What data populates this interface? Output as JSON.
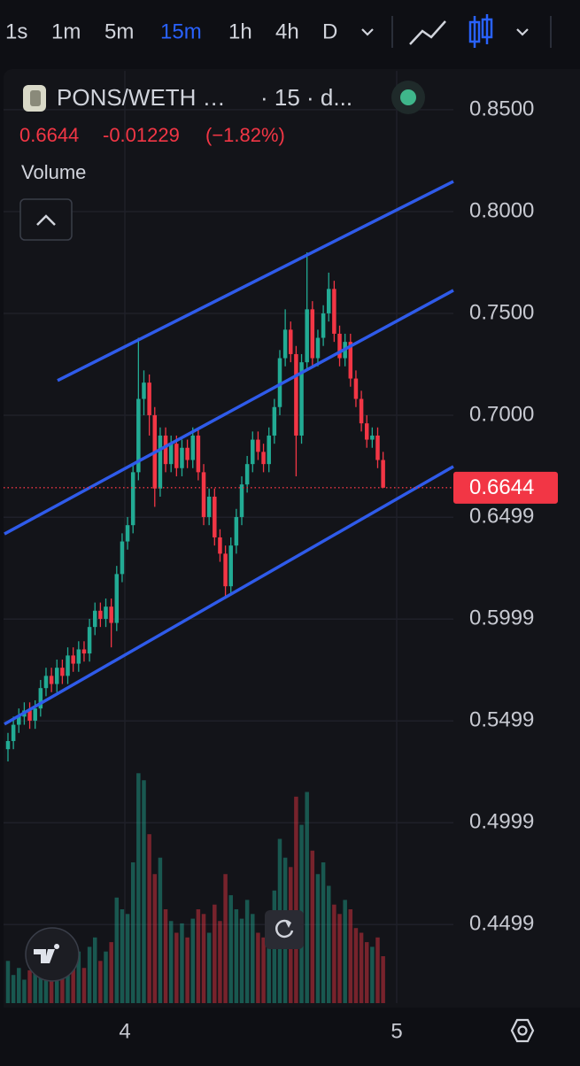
{
  "toolbar": {
    "intervals": [
      "1s",
      "1m",
      "5m",
      "15m",
      "1h",
      "4h",
      "D"
    ],
    "active_index": 3,
    "active_color": "#2962ff"
  },
  "chart_data": {
    "type": "candlestick",
    "symbol": "PONS/WETH …",
    "interval_text": "· 15 · d...",
    "change": -0.01229,
    "change_pct": "(−1.82%)",
    "volume_label": "Volume",
    "up_color": "#22ab94",
    "down_color": "#f23645",
    "x": [
      3.57,
      3.59,
      3.61,
      3.63,
      3.65,
      3.67,
      3.69,
      3.71,
      3.73,
      3.75,
      3.77,
      3.79,
      3.81,
      3.83,
      3.85,
      3.87,
      3.89,
      3.91,
      3.93,
      3.95,
      3.97,
      3.99,
      4.01,
      4.03,
      4.05,
      4.07,
      4.09,
      4.11,
      4.13,
      4.15,
      4.17,
      4.19,
      4.21,
      4.23,
      4.25,
      4.27,
      4.29,
      4.31,
      4.33,
      4.35,
      4.37,
      4.39,
      4.41,
      4.43,
      4.45,
      4.47,
      4.49,
      4.51,
      4.53,
      4.55,
      4.57,
      4.59,
      4.61,
      4.63,
      4.65,
      4.67,
      4.69,
      4.71,
      4.73,
      4.75,
      4.77,
      4.79,
      4.81,
      4.83,
      4.85,
      4.87,
      4.89,
      4.91,
      4.93,
      4.95
    ],
    "open": [
      0.536,
      0.54,
      0.548,
      0.552,
      0.555,
      0.55,
      0.556,
      0.566,
      0.572,
      0.568,
      0.576,
      0.572,
      0.582,
      0.578,
      0.585,
      0.583,
      0.596,
      0.604,
      0.6,
      0.606,
      0.598,
      0.622,
      0.638,
      0.646,
      0.672,
      0.708,
      0.716,
      0.7,
      0.664,
      0.69,
      0.676,
      0.686,
      0.674,
      0.684,
      0.678,
      0.69,
      0.672,
      0.65,
      0.66,
      0.64,
      0.632,
      0.616,
      0.636,
      0.65,
      0.666,
      0.676,
      0.688,
      0.682,
      0.676,
      0.69,
      0.704,
      0.728,
      0.742,
      0.73,
      0.69,
      0.726,
      0.752,
      0.728,
      0.738,
      0.75,
      0.762,
      0.74,
      0.728,
      0.736,
      0.718,
      0.708,
      0.696,
      0.688,
      0.69,
      0.678
    ],
    "high": [
      0.544,
      0.552,
      0.556,
      0.559,
      0.559,
      0.56,
      0.57,
      0.576,
      0.576,
      0.58,
      0.58,
      0.586,
      0.586,
      0.589,
      0.589,
      0.6,
      0.608,
      0.608,
      0.61,
      0.61,
      0.626,
      0.642,
      0.65,
      0.676,
      0.738,
      0.722,
      0.72,
      0.704,
      0.694,
      0.694,
      0.69,
      0.69,
      0.688,
      0.688,
      0.694,
      0.694,
      0.676,
      0.664,
      0.664,
      0.644,
      0.636,
      0.64,
      0.654,
      0.67,
      0.68,
      0.692,
      0.692,
      0.686,
      0.694,
      0.708,
      0.732,
      0.752,
      0.746,
      0.734,
      0.73,
      0.78,
      0.756,
      0.742,
      0.754,
      0.77,
      0.766,
      0.744,
      0.74,
      0.74,
      0.722,
      0.712,
      0.7,
      0.694,
      0.694,
      0.682
    ],
    "low": [
      0.53,
      0.536,
      0.544,
      0.548,
      0.546,
      0.546,
      0.552,
      0.562,
      0.564,
      0.564,
      0.568,
      0.568,
      0.574,
      0.574,
      0.579,
      0.579,
      0.592,
      0.596,
      0.596,
      0.586,
      0.594,
      0.618,
      0.634,
      0.642,
      0.668,
      0.7,
      0.69,
      0.655,
      0.66,
      0.672,
      0.672,
      0.67,
      0.67,
      0.674,
      0.674,
      0.668,
      0.646,
      0.646,
      0.636,
      0.628,
      0.61,
      0.612,
      0.632,
      0.646,
      0.662,
      0.672,
      0.678,
      0.672,
      0.672,
      0.686,
      0.7,
      0.724,
      0.726,
      0.67,
      0.686,
      0.722,
      0.724,
      0.724,
      0.734,
      0.746,
      0.736,
      0.724,
      0.724,
      0.714,
      0.704,
      0.692,
      0.684,
      0.684,
      0.674,
      0.6644
    ],
    "close": [
      0.54,
      0.548,
      0.552,
      0.555,
      0.55,
      0.556,
      0.566,
      0.572,
      0.568,
      0.576,
      0.572,
      0.582,
      0.578,
      0.585,
      0.583,
      0.596,
      0.604,
      0.6,
      0.606,
      0.598,
      0.622,
      0.638,
      0.646,
      0.672,
      0.708,
      0.716,
      0.7,
      0.664,
      0.69,
      0.676,
      0.686,
      0.674,
      0.684,
      0.678,
      0.69,
      0.672,
      0.65,
      0.66,
      0.64,
      0.632,
      0.616,
      0.636,
      0.65,
      0.666,
      0.676,
      0.688,
      0.682,
      0.676,
      0.69,
      0.704,
      0.728,
      0.742,
      0.73,
      0.69,
      0.726,
      0.752,
      0.728,
      0.738,
      0.75,
      0.762,
      0.74,
      0.728,
      0.736,
      0.718,
      0.708,
      0.696,
      0.688,
      0.69,
      0.678,
      0.6644
    ],
    "volume": [
      18,
      12,
      15,
      10,
      14,
      20,
      22,
      16,
      25,
      18,
      14,
      20,
      17,
      22,
      15,
      24,
      28,
      18,
      22,
      26,
      45,
      40,
      38,
      60,
      98,
      95,
      72,
      55,
      62,
      40,
      35,
      30,
      34,
      28,
      36,
      40,
      38,
      30,
      42,
      35,
      55,
      46,
      40,
      36,
      44,
      38,
      30,
      28,
      35,
      48,
      70,
      62,
      58,
      88,
      76,
      90,
      65,
      55,
      60,
      50,
      42,
      38,
      44,
      40,
      32,
      30,
      26,
      24,
      28,
      20
    ],
    "vlim": [
      0,
      100
    ],
    "xlim": [
      3.5407,
      5.2085
    ],
    "xticks": [
      {
        "value": 4,
        "label": "4"
      },
      {
        "value": 5,
        "label": "5"
      }
    ],
    "ylim": [
      0.4113,
      0.8691
    ],
    "yticks": [
      {
        "value": 0.85,
        "label": "0.8500"
      },
      {
        "value": 0.8,
        "label": "0.8000"
      },
      {
        "value": 0.75,
        "label": "0.7500"
      },
      {
        "value": 0.7,
        "label": "0.7000"
      },
      0.6499,
      0.5999,
      0.5499,
      0.4999,
      0.4499
    ],
    "grid": true,
    "price_line_color": "#f23645",
    "trend_lines": [
      {
        "color": "#2f5bea",
        "x": [
          3.7524,
          5.2085
        ],
        "y": [
          0.717,
          0.8148
        ]
      },
      {
        "color": "#2f5bea",
        "x": [
          3.557,
          5.2085
        ],
        "y": [
          0.6417,
          0.7613
        ]
      },
      {
        "color": "#2f5bea",
        "x": [
          3.557,
          5.2085
        ],
        "y": [
          0.5483,
          0.6748
        ]
      }
    ]
  }
}
